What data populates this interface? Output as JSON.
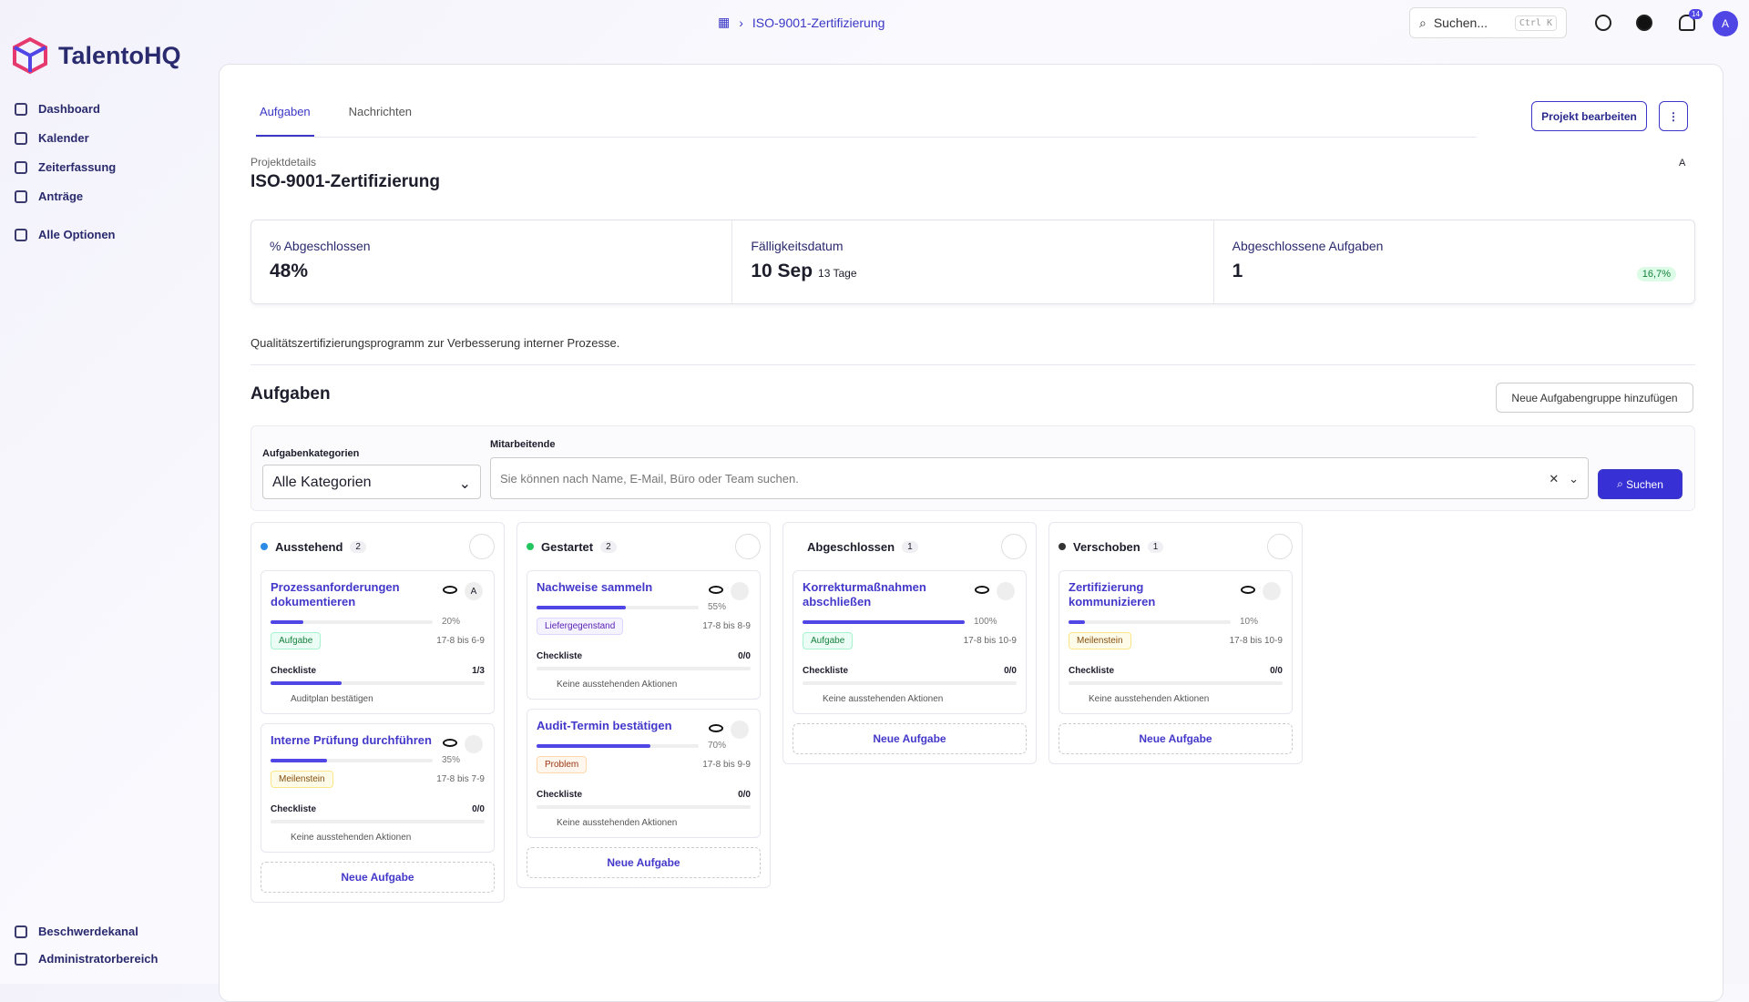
{
  "brand": "TalentoHQ",
  "nav": [
    "Dashboard",
    "Kalender",
    "Zeiterfassung",
    "Anträge"
  ],
  "all_options": "Alle Optionen",
  "nav_bottom": [
    "Beschwerdekanal",
    "Administratorbereich"
  ],
  "breadcrumb": "ISO-9001-Zertifizierung",
  "search": {
    "placeholder": "Suchen...",
    "shortcut": "Ctrl K"
  },
  "notification_count": "14",
  "avatar": "A",
  "tabs": [
    "Aufgaben",
    "Nachrichten"
  ],
  "edit_button": "Projekt bearbeiten",
  "project": {
    "label": "Projektdetails",
    "title": "ISO-9001-Zertifizierung",
    "owner": "A"
  },
  "stats": [
    {
      "label": "% Abgeschlossen",
      "value": "48%"
    },
    {
      "label": "Fälligkeitsdatum",
      "value": "10 Sep",
      "note": "13 Tage"
    },
    {
      "label": "Abgeschlossene Aufgaben",
      "value": "1",
      "badge": "16,7%"
    }
  ],
  "description": "Qualitätszertifizierungsprogramm zur Verbesserung interner Prozesse.",
  "tasks_heading": "Aufgaben",
  "add_group": "Neue Aufgabengruppe hinzufügen",
  "filters": {
    "category_label": "Aufgabenkategorien",
    "category_value": "Alle Kategorien",
    "employee_label": "Mitarbeitende",
    "employee_placeholder": "Sie können nach Name, E-Mail, Büro oder Team suchen.",
    "search_button": "Suchen"
  },
  "checklist_label": "Checkliste",
  "add_task": "Neue Aufgabe",
  "columns": [
    {
      "name": "Ausstehend",
      "count": 2,
      "dot": "#2b8ae6",
      "cards": [
        {
          "title": "Prozessanforderungen dokumentieren",
          "progress": 20,
          "progress_label": "20%",
          "type": "Aufgabe",
          "dates": "17-8 bis 6-9",
          "checklist": "1/3",
          "action": "Auditplan bestätigen",
          "assignee": "A"
        },
        {
          "title": "Interne Prüfung durchführen",
          "progress": 35,
          "progress_label": "35%",
          "type": "Meilenstein",
          "dates": "17-8 bis 7-9",
          "checklist": "0/0",
          "action": "Keine ausstehenden Aktionen"
        }
      ]
    },
    {
      "name": "Gestartet",
      "count": 2,
      "dot": "#22c55e",
      "cards": [
        {
          "title": "Nachweise sammeln",
          "progress": 55,
          "progress_label": "55%",
          "type": "Liefergegenstand",
          "dates": "17-8 bis 8-9",
          "checklist": "0/0",
          "action": "Keine ausstehenden Aktionen"
        },
        {
          "title": "Audit-Termin bestätigen",
          "progress": 70,
          "progress_label": "70%",
          "type": "Problem",
          "dates": "17-8 bis 9-9",
          "checklist": "0/0",
          "action": "Keine ausstehenden Aktionen"
        }
      ]
    },
    {
      "name": "Abgeschlossen",
      "count": 1,
      "dot": "#ffffff",
      "cards": [
        {
          "title": "Korrekturmaßnahmen abschließen",
          "progress": 100,
          "progress_label": "100%",
          "type": "Aufgabe",
          "dates": "17-8 bis 10-9",
          "checklist": "0/0",
          "action": "Keine ausstehenden Aktionen"
        }
      ]
    },
    {
      "name": "Verschoben",
      "count": 1,
      "dot": "#333333",
      "cards": [
        {
          "title": "Zertifizierung kommunizieren",
          "progress": 10,
          "progress_label": "10%",
          "type": "Meilenstein",
          "dates": "17-8 bis 10-9",
          "checklist": "0/0",
          "action": "Keine ausstehenden Aktionen"
        }
      ]
    }
  ]
}
